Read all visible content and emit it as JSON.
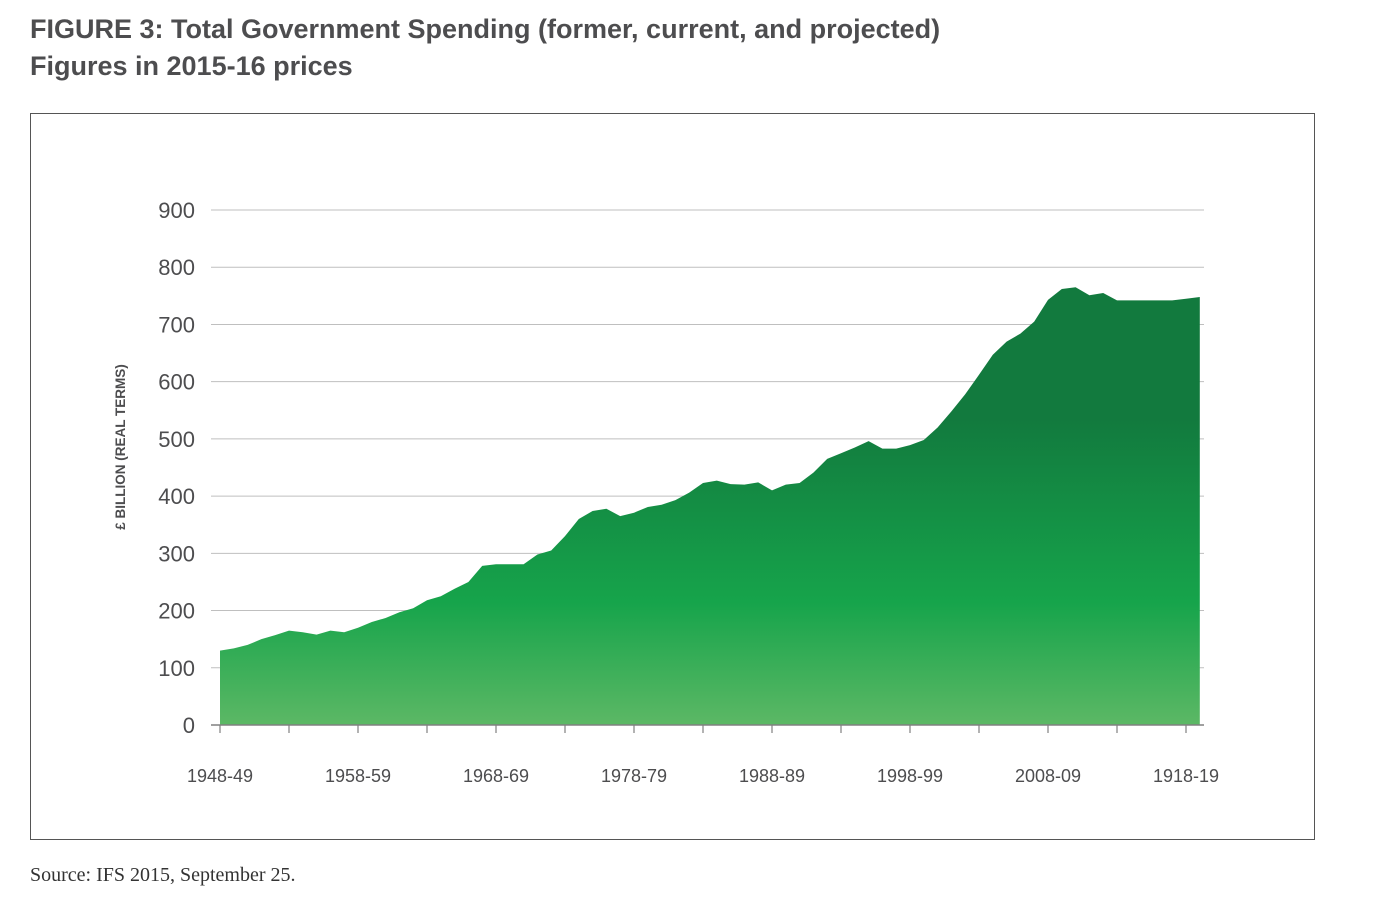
{
  "header": {
    "title": "FIGURE 3: Total Government Spending (former, current, and projected)",
    "subtitle": "Figures in 2015-16 prices"
  },
  "footer": {
    "source": "Source: IFS 2015, September 25."
  },
  "colors": {
    "fill_top": "#127a3e",
    "fill_mid": "#16a44b",
    "fill_bottom": "#5cb865",
    "grid": "#bfbfbf",
    "axis": "#808080"
  },
  "chart_data": {
    "type": "area",
    "title": "FIGURE 3: Total Government Spending (former, current, and projected)",
    "subtitle": "Figures in 2015-16 prices",
    "xlabel": "",
    "ylabel": "£ BILLION (REAL TERMS)",
    "ylim": [
      0,
      900
    ],
    "yticks": [
      0,
      100,
      200,
      300,
      400,
      500,
      600,
      700,
      800,
      900
    ],
    "grid": true,
    "legend": "none",
    "xticks": [
      "1948-49",
      "1958-59",
      "1968-69",
      "1978-79",
      "1988-89",
      "1998-99",
      "2008-09",
      "1918-19"
    ],
    "x": [
      "1948-49",
      "1949-50",
      "1950-51",
      "1951-52",
      "1952-53",
      "1953-54",
      "1954-55",
      "1955-56",
      "1956-57",
      "1957-58",
      "1958-59",
      "1959-60",
      "1960-61",
      "1961-62",
      "1962-63",
      "1963-64",
      "1964-65",
      "1965-66",
      "1966-67",
      "1967-68",
      "1968-69",
      "1969-70",
      "1970-71",
      "1971-72",
      "1972-73",
      "1973-74",
      "1974-75",
      "1975-76",
      "1976-77",
      "1977-78",
      "1978-79",
      "1979-80",
      "1980-81",
      "1981-82",
      "1982-83",
      "1983-84",
      "1984-85",
      "1985-86",
      "1986-87",
      "1987-88",
      "1988-89",
      "1989-90",
      "1990-91",
      "1991-92",
      "1992-93",
      "1993-94",
      "1994-95",
      "1995-96",
      "1996-97",
      "1997-98",
      "1998-99",
      "1999-00",
      "2000-01",
      "2001-02",
      "2002-03",
      "2003-04",
      "2004-05",
      "2005-06",
      "2006-07",
      "2007-08",
      "2008-09",
      "2009-10",
      "2010-11",
      "2011-12",
      "2012-13",
      "2013-14",
      "2014-15",
      "2015-16",
      "2016-17",
      "2017-18",
      "1918-19",
      "2019-20"
    ],
    "series": [
      {
        "values": [
          130,
          134,
          140,
          150,
          157,
          165,
          162,
          158,
          165,
          162,
          170,
          180,
          187,
          197,
          204,
          218,
          225,
          238,
          250,
          278,
          281,
          281,
          281,
          298,
          305,
          330,
          360,
          374,
          378,
          365,
          371,
          381,
          385,
          393,
          406,
          423,
          427,
          421,
          420,
          424,
          410,
          420,
          423,
          441,
          465,
          475,
          485,
          496,
          483,
          483,
          489,
          498,
          520,
          548,
          578,
          612,
          647,
          670,
          684,
          705,
          743,
          762,
          765,
          751,
          755,
          742,
          742,
          742,
          742,
          742,
          745,
          748
        ]
      }
    ]
  }
}
